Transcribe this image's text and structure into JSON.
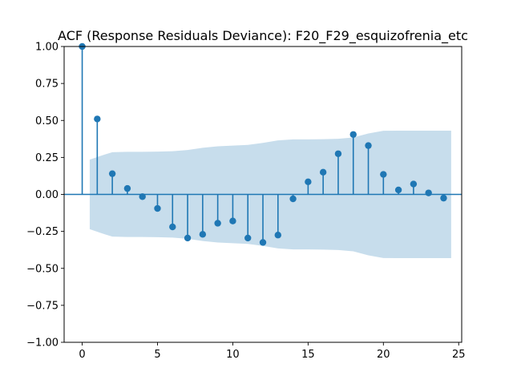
{
  "chart_data": {
    "type": "scatter",
    "subtype": "acf-stem",
    "title": "ACF (Response Residuals Deviance): F20_F29_esquizofrenia_etc",
    "xlabel": "",
    "ylabel": "",
    "xlim": [
      -1.2,
      25.2
    ],
    "ylim": [
      -1.0,
      1.0
    ],
    "xticks": [
      0,
      5,
      10,
      15,
      20,
      25
    ],
    "yticks": [
      -1.0,
      -0.75,
      -0.5,
      -0.25,
      0.0,
      0.25,
      0.5,
      0.75,
      1.0
    ],
    "xtick_labels": [
      "0",
      "5",
      "10",
      "15",
      "20",
      "25"
    ],
    "ytick_labels": [
      "−1.00",
      "−0.75",
      "−0.50",
      "−0.25",
      "0.00",
      "0.25",
      "0.50",
      "0.75",
      "1.00"
    ],
    "grid": false,
    "legend": false,
    "colors": {
      "stem": "#1f77b4",
      "marker": "#1f77b4",
      "zero_line": "#1f77b4",
      "confidence_band": "#1f77b4"
    },
    "acf": {
      "lags": [
        0,
        1,
        2,
        3,
        4,
        5,
        6,
        7,
        8,
        9,
        10,
        11,
        12,
        13,
        14,
        15,
        16,
        17,
        18,
        19,
        20,
        21,
        22,
        23,
        24
      ],
      "values": [
        1.0,
        0.51,
        0.14,
        0.04,
        -0.015,
        -0.095,
        -0.22,
        -0.295,
        -0.27,
        -0.195,
        -0.18,
        -0.295,
        -0.325,
        -0.275,
        -0.03,
        0.085,
        0.15,
        0.275,
        0.405,
        0.33,
        0.135,
        0.03,
        0.07,
        0.01,
        -0.025
      ]
    },
    "confidence_band": {
      "lags": [
        0.5,
        1.5,
        2,
        3,
        4,
        5,
        6,
        7,
        8,
        9,
        10,
        11,
        12,
        13,
        14,
        15,
        16,
        17,
        18,
        19,
        20,
        21,
        22,
        23,
        24,
        24.5
      ],
      "upper": [
        0.235,
        0.27,
        0.285,
        0.288,
        0.288,
        0.289,
        0.292,
        0.3,
        0.315,
        0.325,
        0.33,
        0.335,
        0.348,
        0.365,
        0.372,
        0.372,
        0.373,
        0.376,
        0.385,
        0.412,
        0.43,
        0.431,
        0.431,
        0.431,
        0.431,
        0.431
      ]
    }
  }
}
